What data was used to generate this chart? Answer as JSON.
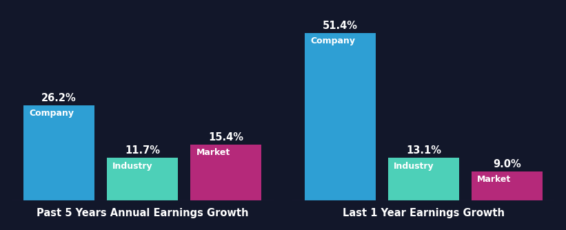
{
  "background_color": "#12172a",
  "chart1": {
    "title": "Past 5 Years Annual Earnings Growth",
    "categories": [
      "Company",
      "Industry",
      "Market"
    ],
    "values": [
      26.2,
      11.7,
      15.4
    ],
    "colors": [
      "#2e9fd4",
      "#4dd0b8",
      "#b5297a"
    ],
    "labels": [
      "26.2%",
      "11.7%",
      "15.4%"
    ],
    "ylim": [
      0,
      52
    ]
  },
  "chart2": {
    "title": "Last 1 Year Earnings Growth",
    "categories": [
      "Company",
      "Industry",
      "Market"
    ],
    "values": [
      51.4,
      13.1,
      9.0
    ],
    "colors": [
      "#2e9fd4",
      "#4dd0b8",
      "#b5297a"
    ],
    "labels": [
      "51.4%",
      "13.1%",
      "9.0%"
    ],
    "ylim": [
      0,
      58
    ]
  },
  "text_color": "#ffffff",
  "label_fontsize": 10.5,
  "category_fontsize": 9,
  "title_fontsize": 10.5,
  "bar_width": 0.85
}
